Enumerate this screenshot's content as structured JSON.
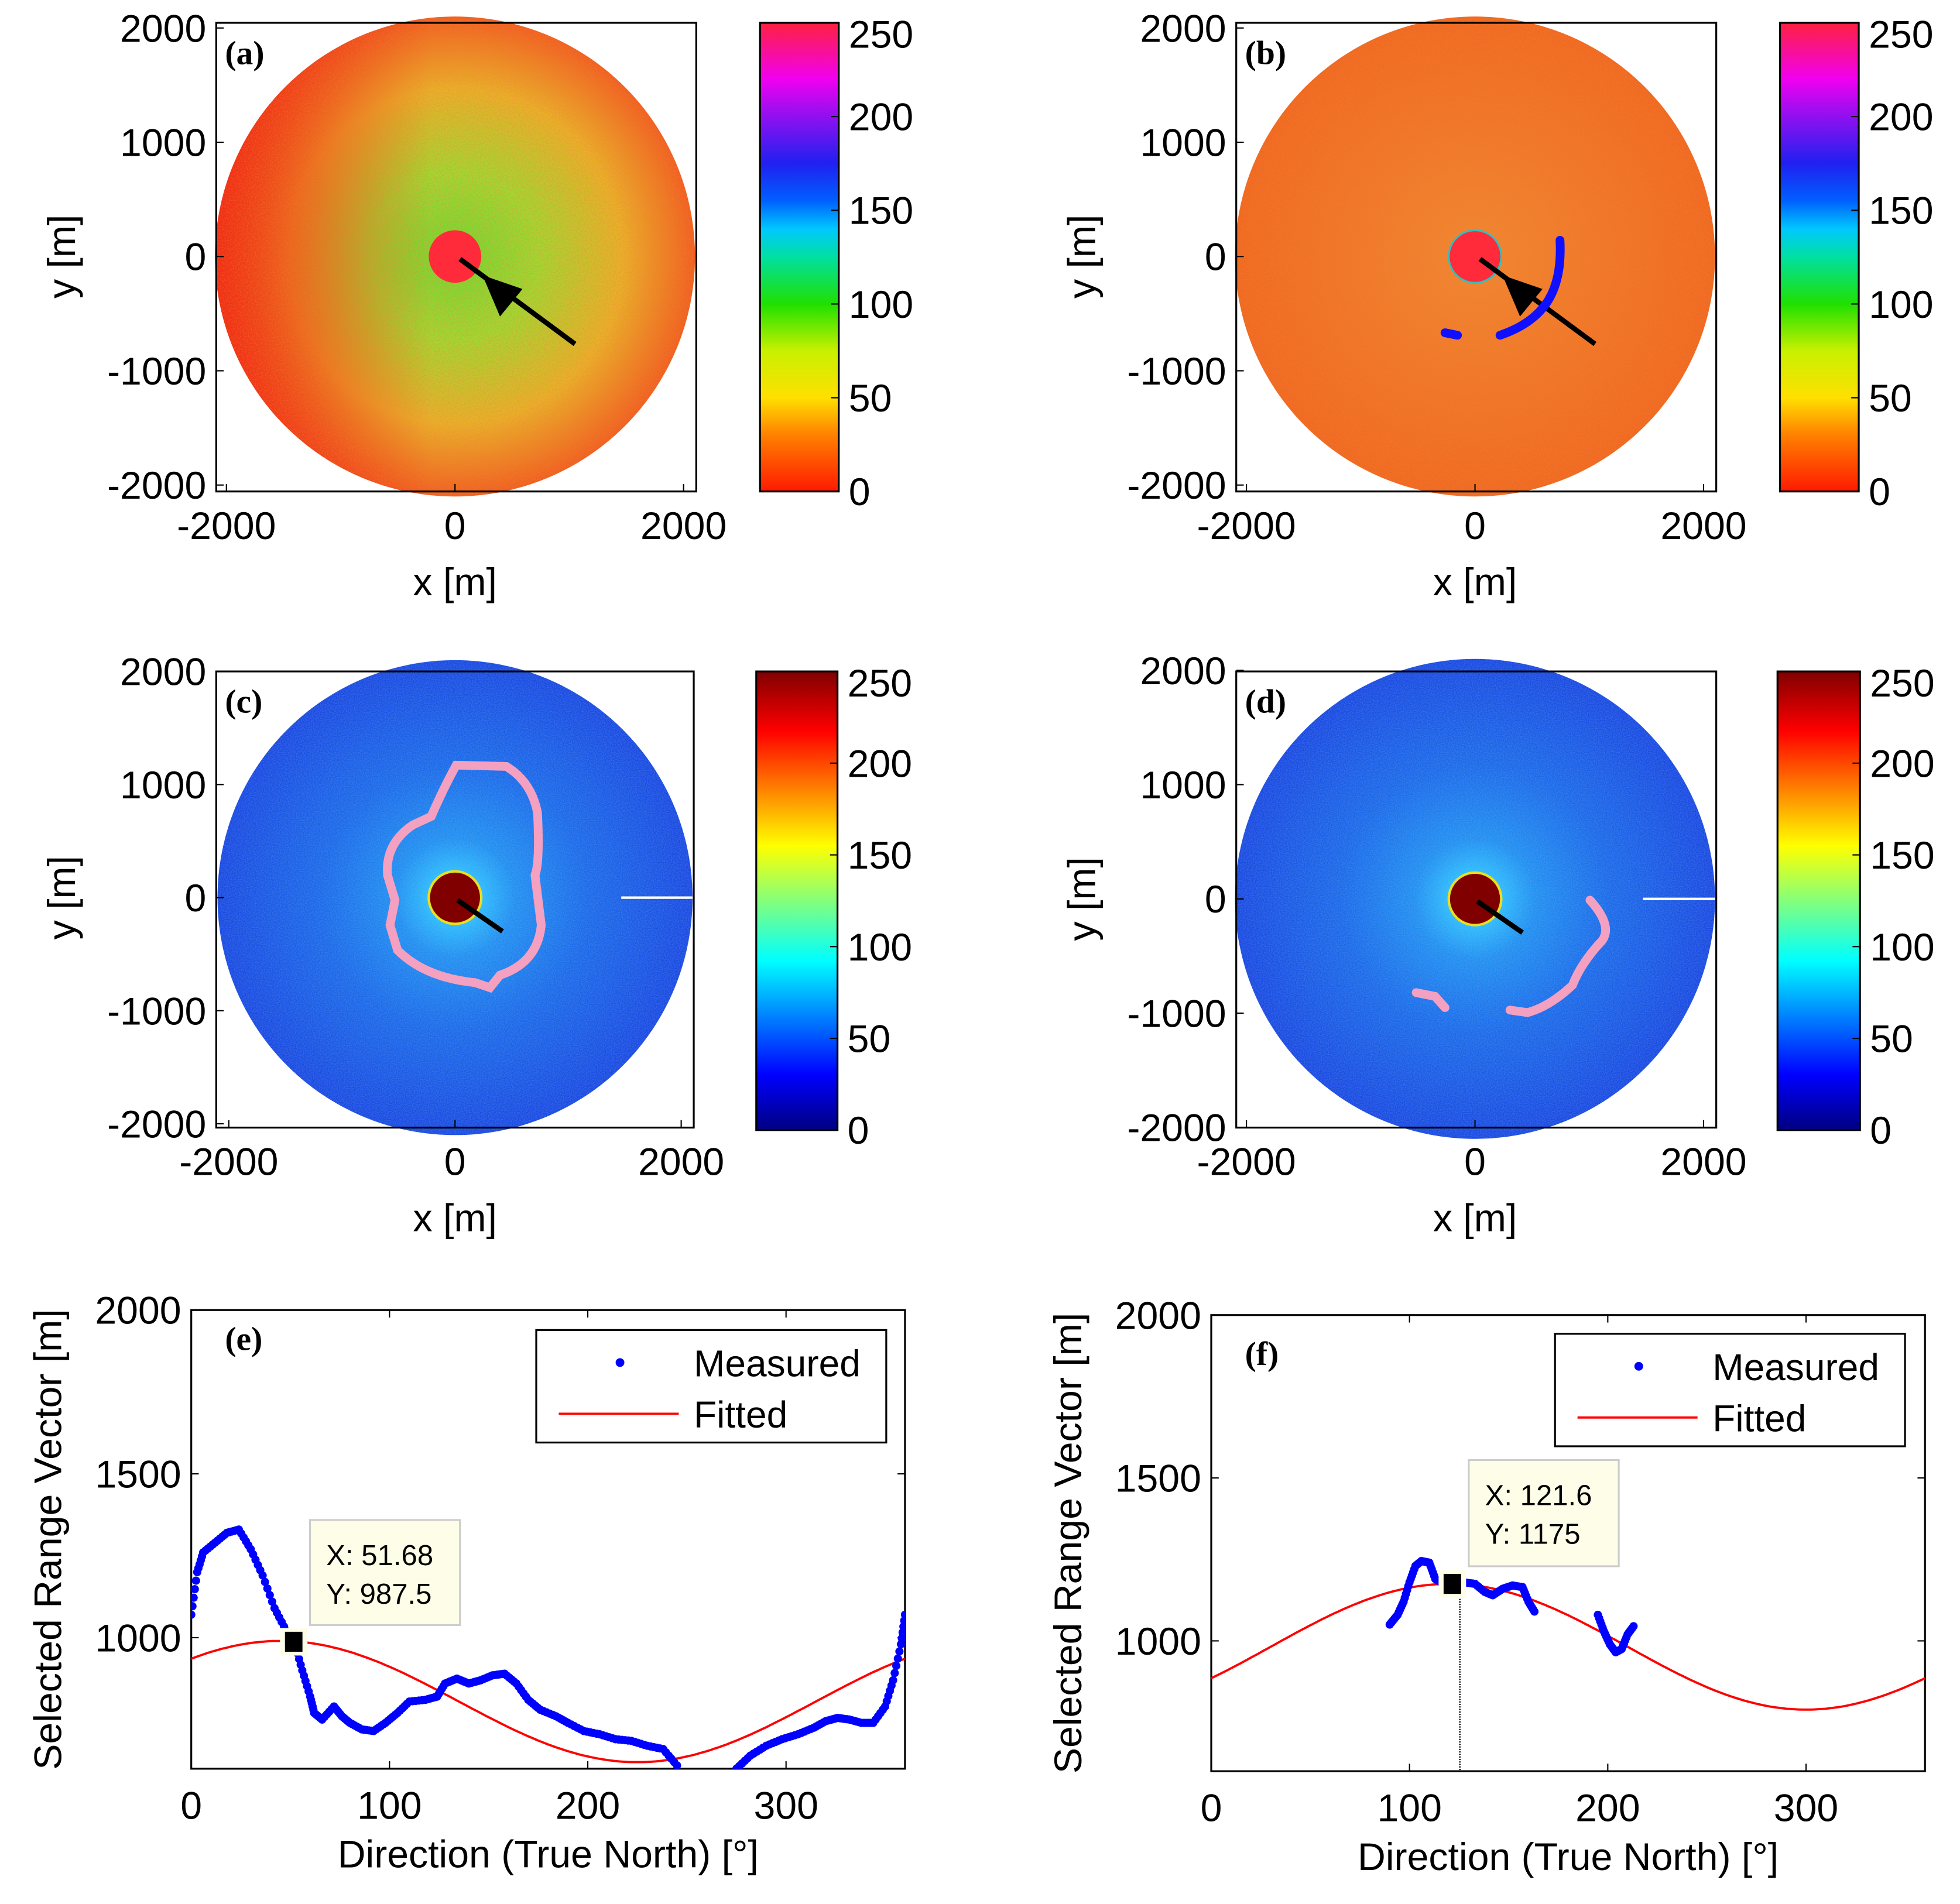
{
  "colors": {
    "measured": "#0000ff",
    "fitted": "#ff0000",
    "arrow": "#000000",
    "contour": "#f4a0c0",
    "tip_bg": "#fefee8"
  },
  "radar_panels": [
    {
      "label": "(a)",
      "xlabel": "x [m]",
      "ylabel": "y [m]",
      "xticks": [
        "-2000",
        "0",
        "2000"
      ],
      "yticks": [
        "2000",
        "1000",
        "0",
        "-1000",
        "-2000"
      ],
      "cbar_ticks": [
        "250",
        "200",
        "150",
        "100",
        "50",
        "0"
      ],
      "colormap": "intensity-inverted",
      "cbar_range": [
        0,
        250
      ]
    },
    {
      "label": "(b)",
      "xlabel": "x [m]",
      "ylabel": "y [m]",
      "xticks": [
        "-2000",
        "0",
        "2000"
      ],
      "yticks": [
        "2000",
        "1000",
        "0",
        "-1000",
        "-2000"
      ],
      "cbar_ticks": [
        "250",
        "200",
        "150",
        "100",
        "50",
        "0"
      ],
      "colormap": "intensity-inverted",
      "cbar_range": [
        0,
        250
      ]
    },
    {
      "label": "(c)",
      "xlabel": "x [m]",
      "ylabel": "y [m]",
      "xticks": [
        "-2000",
        "0",
        "2000"
      ],
      "yticks": [
        "2000",
        "1000",
        "0",
        "-1000",
        "-2000"
      ],
      "cbar_ticks": [
        "250",
        "200",
        "150",
        "100",
        "50",
        "0"
      ],
      "colormap": "jet",
      "cbar_range": [
        0,
        250
      ]
    },
    {
      "label": "(d)",
      "xlabel": "x [m]",
      "ylabel": "y [m]",
      "xticks": [
        "-2000",
        "0",
        "2000"
      ],
      "yticks": [
        "2000",
        "1000",
        "0",
        "-1000",
        "-2000"
      ],
      "cbar_ticks": [
        "250",
        "200",
        "150",
        "100",
        "50",
        "0"
      ],
      "colormap": "jet",
      "cbar_range": [
        0,
        250
      ]
    }
  ],
  "chart_data": [
    {
      "type": "line",
      "label": "(e)",
      "xlabel": "Direction (True North) [°]",
      "ylabel": "Selected Range Vector [m]",
      "xlim": [
        0,
        360
      ],
      "ylim": [
        600,
        2000
      ],
      "xticks": [
        "0",
        "100",
        "200",
        "300"
      ],
      "yticks": [
        "2000",
        "1500",
        "1000"
      ],
      "legend": {
        "position": "top-right",
        "entries": [
          "Measured",
          "Fitted"
        ]
      },
      "series": [
        {
          "name": "Measured",
          "style": "dots",
          "segments": [
            [
              [
                0,
                1070
              ],
              [
                3,
                1200
              ],
              [
                6,
                1260
              ],
              [
                12,
                1290
              ],
              [
                18,
                1320
              ],
              [
                24,
                1330
              ],
              [
                30,
                1270
              ],
              [
                36,
                1190
              ],
              [
                42,
                1090
              ],
              [
                48,
                1020
              ],
              [
                52,
                987
              ],
              [
                56,
                900
              ],
              [
                60,
                820
              ],
              [
                62,
                770
              ],
              [
                66,
                750
              ],
              [
                72,
                790
              ],
              [
                76,
                760
              ],
              [
                80,
                740
              ],
              [
                86,
                720
              ],
              [
                92,
                715
              ],
              [
                98,
                740
              ],
              [
                104,
                770
              ],
              [
                110,
                805
              ],
              [
                118,
                810
              ],
              [
                124,
                820
              ],
              [
                128,
                860
              ],
              [
                134,
                875
              ],
              [
                140,
                860
              ],
              [
                146,
                870
              ],
              [
                152,
                885
              ],
              [
                158,
                890
              ],
              [
                164,
                860
              ],
              [
                170,
                810
              ],
              [
                176,
                780
              ],
              [
                184,
                760
              ],
              [
                190,
                740
              ],
              [
                198,
                715
              ],
              [
                206,
                705
              ],
              [
                214,
                690
              ],
              [
                222,
                685
              ],
              [
                230,
                670
              ],
              [
                238,
                660
              ],
              [
                245,
                610
              ]
            ],
            [
              [
                275,
                600
              ],
              [
                282,
                640
              ],
              [
                290,
                670
              ],
              [
                298,
                690
              ],
              [
                306,
                705
              ],
              [
                314,
                725
              ],
              [
                320,
                745
              ],
              [
                326,
                755
              ],
              [
                332,
                750
              ],
              [
                338,
                740
              ],
              [
                344,
                740
              ],
              [
                350,
                790
              ],
              [
                354,
                870
              ],
              [
                358,
                980
              ],
              [
                360,
                1070
              ]
            ]
          ]
        },
        {
          "name": "Fitted",
          "style": "line",
          "model": "sinusoid",
          "mean": 805,
          "amplitude": 185,
          "peak_direction": 45
        }
      ],
      "datatip": {
        "x": 51.68,
        "y": 987.5,
        "x_text": "X: 51.68",
        "y_text": "Y: 987.5"
      }
    },
    {
      "type": "line",
      "label": "(f)",
      "xlabel": "Direction (True North) [°]",
      "ylabel": "Selected Range Vector [m]",
      "xlim": [
        0,
        360
      ],
      "ylim": [
        600,
        2000
      ],
      "xticks": [
        "0",
        "100",
        "200",
        "300"
      ],
      "yticks": [
        "2000",
        "1500",
        "1000"
      ],
      "legend": {
        "position": "top-right",
        "entries": [
          "Measured",
          "Fitted"
        ]
      },
      "series": [
        {
          "name": "Measured",
          "style": "dots",
          "segments": [
            [
              [
                90,
                1050
              ],
              [
                94,
                1080
              ],
              [
                97,
                1120
              ],
              [
                100,
                1180
              ],
              [
                103,
                1230
              ],
              [
                106,
                1245
              ],
              [
                110,
                1240
              ],
              [
                113,
                1190
              ],
              [
                117,
                1175
              ],
              [
                121.6,
                1175
              ],
              [
                127,
                1180
              ],
              [
                133,
                1175
              ],
              [
                138,
                1150
              ],
              [
                142,
                1140
              ],
              [
                147,
                1160
              ],
              [
                152,
                1170
              ],
              [
                157,
                1165
              ],
              [
                160,
                1120
              ],
              [
                163,
                1090
              ]
            ],
            [
              [
                195,
                1080
              ],
              [
                198,
                1030
              ],
              [
                201,
                990
              ],
              [
                204,
                965
              ],
              [
                207,
                975
              ],
              [
                210,
                1020
              ],
              [
                213,
                1045
              ]
            ]
          ]
        },
        {
          "name": "Fitted",
          "style": "line",
          "model": "sinusoid",
          "mean": 982,
          "amplitude": 193,
          "peak_direction": 120
        }
      ],
      "datatip": {
        "x": 121.6,
        "y": 1175,
        "x_text": "X: 121.6",
        "y_text": "Y: 1175"
      }
    }
  ]
}
